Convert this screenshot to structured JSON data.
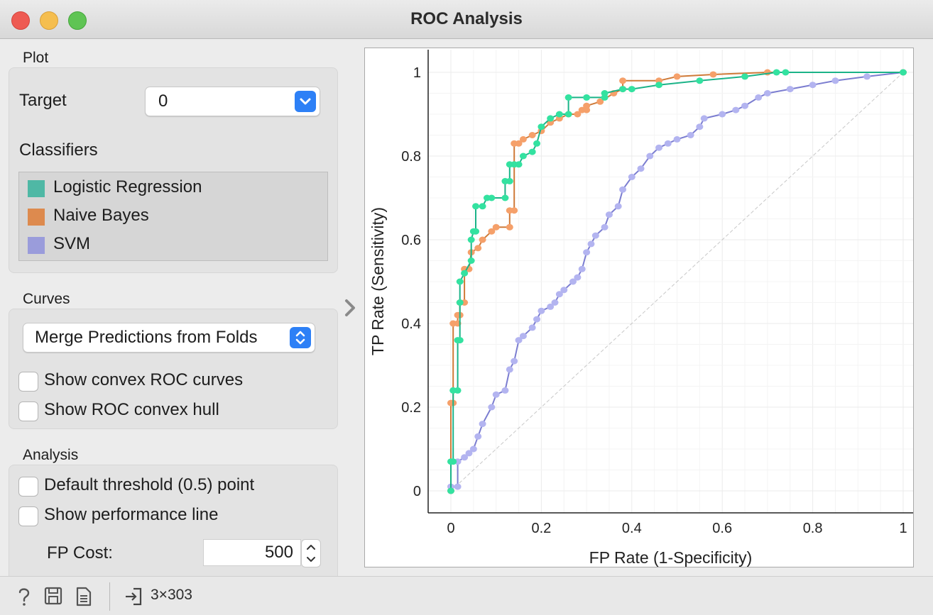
{
  "window": {
    "title": "ROC Analysis"
  },
  "plot_section": {
    "label": "Plot",
    "target_label": "Target",
    "target_value": "0",
    "classifiers_label": "Classifiers",
    "classifiers": [
      {
        "name": "Logistic Regression",
        "color": "#4fb8a5"
      },
      {
        "name": "Naive Bayes",
        "color": "#dd8a4e"
      },
      {
        "name": "SVM",
        "color": "#9a9cdb"
      }
    ]
  },
  "curves_section": {
    "label": "Curves",
    "merge_option": "Merge Predictions from Folds",
    "convex_curves_label": "Show convex ROC curves",
    "convex_hull_label": "Show ROC convex hull"
  },
  "analysis_section": {
    "label": "Analysis",
    "default_threshold_label": "Default threshold (0.5) point",
    "performance_line_label": "Show performance line",
    "fp_cost_label": "FP Cost:",
    "fp_cost_value": "500"
  },
  "statusbar": {
    "data_shape": "3×303"
  },
  "chart_data": {
    "type": "line",
    "title": "",
    "xlabel": "FP Rate (1-Specificity)",
    "ylabel": "TP Rate (Sensitivity)",
    "xlim": [
      0,
      1
    ],
    "ylim": [
      0,
      1
    ],
    "xticks": [
      "0",
      "0.2",
      "0.4",
      "0.6",
      "0.8",
      "1"
    ],
    "yticks": [
      "0",
      "0.2",
      "0.4",
      "0.6",
      "0.8",
      "1"
    ],
    "grid": true,
    "diagonal": true,
    "series": [
      {
        "name": "Logistic Regression",
        "line_color": "#1bb388",
        "marker_color": "#33e2a0",
        "points": [
          [
            0,
            0
          ],
          [
            0,
            0.07
          ],
          [
            0.005,
            0.07
          ],
          [
            0.005,
            0.24
          ],
          [
            0.015,
            0.24
          ],
          [
            0.015,
            0.36
          ],
          [
            0.02,
            0.36
          ],
          [
            0.02,
            0.45
          ],
          [
            0.02,
            0.5
          ],
          [
            0.03,
            0.52
          ],
          [
            0.045,
            0.55
          ],
          [
            0.045,
            0.6
          ],
          [
            0.05,
            0.62
          ],
          [
            0.055,
            0.62
          ],
          [
            0.055,
            0.68
          ],
          [
            0.07,
            0.68
          ],
          [
            0.08,
            0.7
          ],
          [
            0.09,
            0.7
          ],
          [
            0.12,
            0.7
          ],
          [
            0.12,
            0.74
          ],
          [
            0.13,
            0.74
          ],
          [
            0.13,
            0.78
          ],
          [
            0.14,
            0.78
          ],
          [
            0.15,
            0.78
          ],
          [
            0.16,
            0.8
          ],
          [
            0.18,
            0.81
          ],
          [
            0.19,
            0.83
          ],
          [
            0.2,
            0.87
          ],
          [
            0.22,
            0.89
          ],
          [
            0.24,
            0.9
          ],
          [
            0.26,
            0.9
          ],
          [
            0.26,
            0.94
          ],
          [
            0.3,
            0.94
          ],
          [
            0.34,
            0.94
          ],
          [
            0.34,
            0.95
          ],
          [
            0.38,
            0.96
          ],
          [
            0.4,
            0.96
          ],
          [
            0.46,
            0.97
          ],
          [
            0.55,
            0.98
          ],
          [
            0.65,
            0.99
          ],
          [
            0.72,
            1.0
          ],
          [
            0.74,
            1.0
          ],
          [
            1,
            1
          ]
        ]
      },
      {
        "name": "Naive Bayes",
        "line_color": "#cf7a38",
        "marker_color": "#f5a06a",
        "points": [
          [
            0,
            0
          ],
          [
            0,
            0.21
          ],
          [
            0.005,
            0.21
          ],
          [
            0.005,
            0.4
          ],
          [
            0.015,
            0.4
          ],
          [
            0.015,
            0.42
          ],
          [
            0.02,
            0.42
          ],
          [
            0.02,
            0.45
          ],
          [
            0.03,
            0.45
          ],
          [
            0.03,
            0.53
          ],
          [
            0.04,
            0.53
          ],
          [
            0.045,
            0.57
          ],
          [
            0.06,
            0.58
          ],
          [
            0.07,
            0.6
          ],
          [
            0.09,
            0.62
          ],
          [
            0.1,
            0.63
          ],
          [
            0.13,
            0.63
          ],
          [
            0.13,
            0.67
          ],
          [
            0.14,
            0.67
          ],
          [
            0.14,
            0.83
          ],
          [
            0.15,
            0.83
          ],
          [
            0.16,
            0.84
          ],
          [
            0.18,
            0.85
          ],
          [
            0.2,
            0.86
          ],
          [
            0.22,
            0.88
          ],
          [
            0.24,
            0.89
          ],
          [
            0.26,
            0.9
          ],
          [
            0.28,
            0.9
          ],
          [
            0.29,
            0.91
          ],
          [
            0.3,
            0.91
          ],
          [
            0.3,
            0.92
          ],
          [
            0.33,
            0.93
          ],
          [
            0.36,
            0.95
          ],
          [
            0.38,
            0.96
          ],
          [
            0.38,
            0.98
          ],
          [
            0.46,
            0.98
          ],
          [
            0.5,
            0.99
          ],
          [
            0.58,
            0.995
          ],
          [
            0.7,
            1.0
          ],
          [
            1,
            1
          ]
        ]
      },
      {
        "name": "SVM",
        "line_color": "#7b7dd0",
        "marker_color": "#b3b4f0",
        "points": [
          [
            0,
            0
          ],
          [
            0,
            0.01
          ],
          [
            0.015,
            0.01
          ],
          [
            0.015,
            0.07
          ],
          [
            0.03,
            0.08
          ],
          [
            0.04,
            0.09
          ],
          [
            0.05,
            0.1
          ],
          [
            0.06,
            0.13
          ],
          [
            0.07,
            0.16
          ],
          [
            0.09,
            0.2
          ],
          [
            0.1,
            0.23
          ],
          [
            0.12,
            0.24
          ],
          [
            0.13,
            0.29
          ],
          [
            0.14,
            0.31
          ],
          [
            0.15,
            0.36
          ],
          [
            0.16,
            0.37
          ],
          [
            0.18,
            0.39
          ],
          [
            0.19,
            0.41
          ],
          [
            0.2,
            0.43
          ],
          [
            0.22,
            0.44
          ],
          [
            0.23,
            0.45
          ],
          [
            0.24,
            0.47
          ],
          [
            0.25,
            0.48
          ],
          [
            0.27,
            0.5
          ],
          [
            0.28,
            0.51
          ],
          [
            0.29,
            0.53
          ],
          [
            0.3,
            0.57
          ],
          [
            0.31,
            0.59
          ],
          [
            0.32,
            0.61
          ],
          [
            0.34,
            0.63
          ],
          [
            0.35,
            0.66
          ],
          [
            0.37,
            0.68
          ],
          [
            0.38,
            0.72
          ],
          [
            0.4,
            0.75
          ],
          [
            0.42,
            0.77
          ],
          [
            0.44,
            0.8
          ],
          [
            0.46,
            0.82
          ],
          [
            0.48,
            0.83
          ],
          [
            0.5,
            0.84
          ],
          [
            0.53,
            0.85
          ],
          [
            0.55,
            0.87
          ],
          [
            0.56,
            0.89
          ],
          [
            0.6,
            0.9
          ],
          [
            0.63,
            0.91
          ],
          [
            0.65,
            0.92
          ],
          [
            0.68,
            0.94
          ],
          [
            0.7,
            0.95
          ],
          [
            0.75,
            0.96
          ],
          [
            0.8,
            0.97
          ],
          [
            0.85,
            0.98
          ],
          [
            0.92,
            0.99
          ],
          [
            1,
            1
          ]
        ]
      }
    ]
  }
}
